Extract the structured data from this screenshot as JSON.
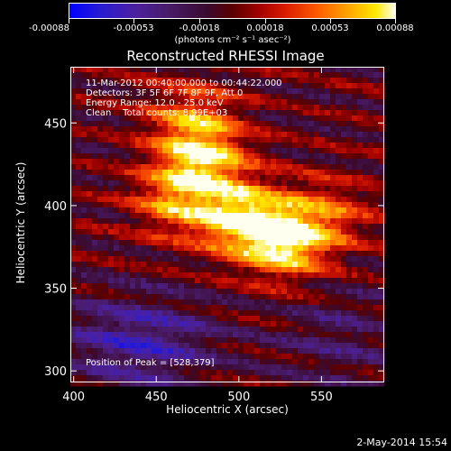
{
  "colorbar": {
    "tick_labels": [
      "-0.00088",
      "-0.00053",
      "-0.00018",
      "0.00018",
      "0.00053",
      "0.00088"
    ],
    "units_label": "(photons cm⁻² s⁻¹ asec⁻²)",
    "range": [
      -0.00088,
      0.00088
    ]
  },
  "chart_data": {
    "type": "heatmap",
    "title": "Reconstructed RHESSI Image",
    "xlabel": "Heliocentric X (arcsec)",
    "ylabel": "Heliocentric Y (arcsec)",
    "xlim": [
      398,
      588
    ],
    "ylim": [
      293,
      484
    ],
    "x_ticks": [
      400,
      450,
      500,
      550
    ],
    "y_ticks": [
      300,
      350,
      400,
      450
    ],
    "peak": [
      528,
      379
    ],
    "annotations": [
      "11-Mar-2012 00:40:00.000 to 00:44:22.000",
      "Detectors: 3F 5F 6F 7F 8F 9F, Att 0",
      "Energy Range: 12.0 - 25.0 keV",
      "Clean    Total counts: 8.99E+03"
    ],
    "peak_label": "Position of Peak = [528,379]",
    "bright_regions": [
      {
        "x": 528,
        "y": 379,
        "intensity": 1.0
      },
      {
        "x": 500,
        "y": 393,
        "intensity": 0.85
      },
      {
        "x": 478,
        "y": 430,
        "intensity": 0.8
      },
      {
        "x": 462,
        "y": 403,
        "intensity": 0.6
      },
      {
        "x": 555,
        "y": 395,
        "intensity": 0.4
      },
      {
        "x": 470,
        "y": 455,
        "intensity": 0.45
      }
    ]
  },
  "footer": {
    "date": "2-May-2014 15:54"
  }
}
